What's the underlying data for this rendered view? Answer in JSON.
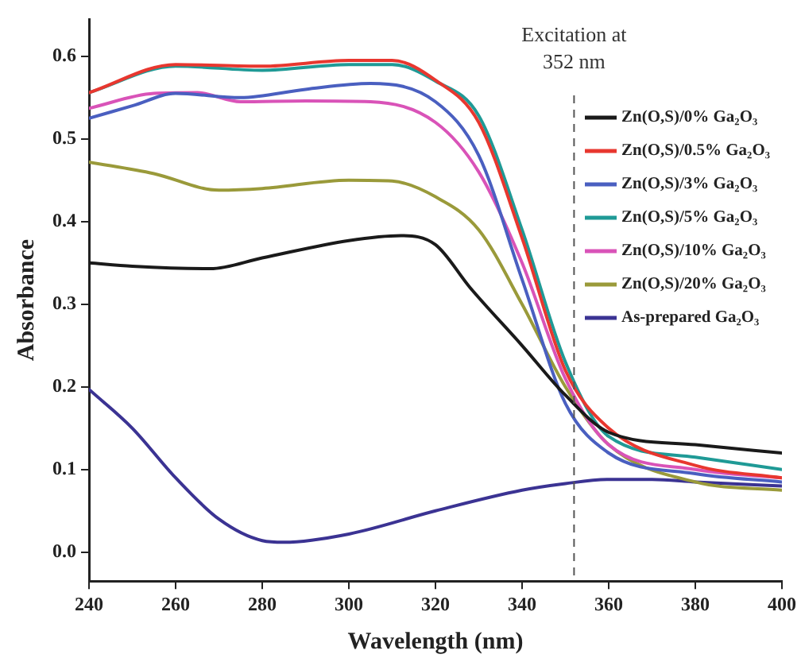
{
  "chart_data": {
    "type": "line",
    "xlabel": "Wavelength (nm)",
    "ylabel": "Absorbance",
    "xlim": [
      240,
      400
    ],
    "ylim": [
      -0.035,
      0.645
    ],
    "xticks": [
      240,
      260,
      280,
      300,
      320,
      340,
      360,
      380,
      400
    ],
    "yticks": [
      {
        "value": 0,
        "label": "0.0"
      },
      0.1,
      0.2,
      0.3,
      0.4,
      0.5,
      0.6
    ],
    "grid": false,
    "legend": "top right",
    "marker": "none",
    "line_style": "solid",
    "ref_lines": [
      {
        "axis": "x",
        "value": 352,
        "label": "Excitation at 352 nm",
        "line_style": "dashed",
        "color": "#555555"
      }
    ],
    "series": [
      {
        "name": "Zn(O,S)/0% Ga₂O₃",
        "color": "#1a1a1a",
        "x": [
          240,
          250,
          268,
          280,
          300,
          312,
          320,
          328,
          340,
          350,
          360,
          380,
          400
        ],
        "values": [
          0.35,
          0.346,
          0.343,
          0.356,
          0.377,
          0.383,
          0.372,
          0.32,
          0.25,
          0.19,
          0.145,
          0.13,
          0.12
        ]
      },
      {
        "name": "Zn(O,S)/0.5% Ga₂O₃",
        "color": "#e8372f",
        "x": [
          240,
          260,
          280,
          300,
          310,
          320,
          330,
          340,
          350,
          360,
          380,
          400
        ],
        "values": [
          0.556,
          0.59,
          0.588,
          0.595,
          0.595,
          0.571,
          0.52,
          0.38,
          0.22,
          0.15,
          0.105,
          0.09
        ]
      },
      {
        "name": "Zn(O,S)/3% Ga₂O₃",
        "color": "#4a5fc0",
        "x": [
          240,
          250,
          260,
          275,
          290,
          305,
          320,
          330,
          340,
          350,
          360,
          380,
          400
        ],
        "values": [
          0.525,
          0.54,
          0.555,
          0.55,
          0.56,
          0.567,
          0.545,
          0.48,
          0.33,
          0.18,
          0.12,
          0.095,
          0.085
        ]
      },
      {
        "name": "Zn(O,S)/5% Ga₂O₃",
        "color": "#1f9a96",
        "x": [
          240,
          260,
          280,
          300,
          310,
          320,
          330,
          340,
          350,
          360,
          380,
          400
        ],
        "values": [
          0.556,
          0.588,
          0.583,
          0.59,
          0.59,
          0.57,
          0.528,
          0.39,
          0.23,
          0.14,
          0.115,
          0.1
        ]
      },
      {
        "name": "Zn(O,S)/10% Ga₂O₃",
        "color": "#d953b8",
        "x": [
          240,
          255,
          265,
          275,
          290,
          305,
          320,
          330,
          340,
          350,
          360,
          380,
          400
        ],
        "values": [
          0.537,
          0.555,
          0.556,
          0.545,
          0.546,
          0.545,
          0.52,
          0.46,
          0.35,
          0.21,
          0.13,
          0.1,
          0.09
        ]
      },
      {
        "name": "Zn(O,S)/20% Ga₂O₃",
        "color": "#9a9a3a",
        "x": [
          240,
          255,
          270,
          280,
          300,
          310,
          320,
          330,
          340,
          350,
          360,
          380,
          400
        ],
        "values": [
          0.472,
          0.458,
          0.438,
          0.44,
          0.45,
          0.449,
          0.43,
          0.39,
          0.3,
          0.2,
          0.13,
          0.085,
          0.075
        ]
      },
      {
        "name": "As-prepared Ga₂O₃",
        "color": "#3b3393",
        "x": [
          240,
          250,
          260,
          270,
          280,
          285,
          300,
          320,
          340,
          350,
          360,
          370,
          380,
          400
        ],
        "values": [
          0.197,
          0.15,
          0.09,
          0.04,
          0.014,
          0.012,
          0.022,
          0.05,
          0.075,
          0.083,
          0.088,
          0.088,
          0.085,
          0.08
        ]
      }
    ]
  }
}
